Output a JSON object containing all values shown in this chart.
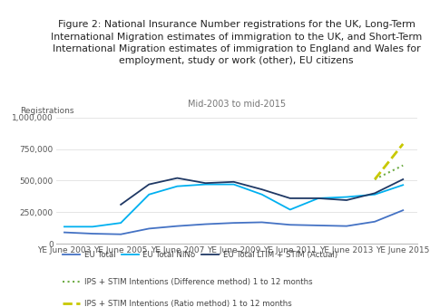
{
  "title_line1": "Figure 2: National Insurance Number registrations for the UK, Long-Term",
  "title_line2": "International Migration estimates of immigration to the UK, and Short-Term",
  "title_line3": "International Migration estimates of immigration to England and Wales for",
  "title_line4": "employment, study or work (other), EU citizens",
  "subtitle": "Mid-2003 to mid-2015",
  "ylabel": "Registrations",
  "ylim": [
    0,
    1000000
  ],
  "yticks": [
    0,
    250000,
    500000,
    750000,
    1000000
  ],
  "ytick_labels": [
    "0",
    "250,000",
    "500,000",
    "750,000",
    "1,000,000"
  ],
  "xtick_labels": [
    "YE June 2003",
    "YE June 2005",
    "YE June 2007",
    "YE June 2009",
    "YE June 2011",
    "YE June 2013",
    "YE June 2015"
  ],
  "x_positions": [
    0,
    2,
    4,
    6,
    8,
    10,
    12
  ],
  "eu_total": {
    "label": "EU Total",
    "color": "#4472c4",
    "x": [
      0,
      1,
      2,
      3,
      4,
      5,
      6,
      7,
      8,
      9,
      10,
      11,
      12
    ],
    "y": [
      90000,
      80000,
      75000,
      120000,
      140000,
      155000,
      165000,
      170000,
      150000,
      145000,
      140000,
      175000,
      265000
    ]
  },
  "eu_nino": {
    "label": "EU Total NINo",
    "color": "#00b0f0",
    "x": [
      0,
      1,
      2,
      3,
      4,
      5,
      6,
      7,
      8,
      9,
      10,
      11,
      12
    ],
    "y": [
      135000,
      135000,
      165000,
      390000,
      455000,
      470000,
      470000,
      390000,
      270000,
      360000,
      370000,
      390000,
      465000
    ]
  },
  "eu_ltim_stim": {
    "label": "EU Total LTIM + STIM (Actual)",
    "color": "#1f3864",
    "x": [
      2,
      3,
      4,
      5,
      6,
      7,
      8,
      9,
      10,
      11,
      12
    ],
    "y": [
      310000,
      470000,
      520000,
      480000,
      490000,
      430000,
      360000,
      360000,
      345000,
      400000,
      510000
    ]
  },
  "ips_diff": {
    "label": "IPS + STIM Intentions (Difference method) 1 to 12 months",
    "color": "#70ad47",
    "x": [
      11,
      12
    ],
    "y": [
      510000,
      620000
    ]
  },
  "ips_ratio": {
    "label": "IPS + STIM Intentions (Ratio method) 1 to 12 months",
    "color": "#c8c800",
    "x": [
      11,
      12
    ],
    "y": [
      510000,
      790000
    ]
  },
  "background_color": "#ffffff",
  "grid_color": "#e0e0e0",
  "title_fontsize": 7.8,
  "subtitle_fontsize": 7.0,
  "ylabel_fontsize": 6.5,
  "legend_fontsize": 6.2,
  "tick_fontsize": 6.5
}
